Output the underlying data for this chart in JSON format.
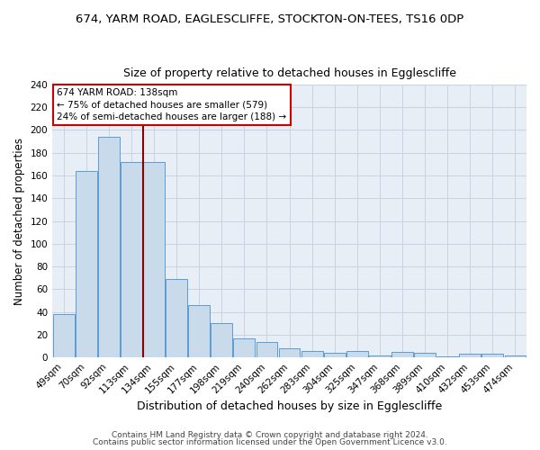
{
  "title": "674, YARM ROAD, EAGLESCLIFFE, STOCKTON-ON-TEES, TS16 0DP",
  "subtitle": "Size of property relative to detached houses in Egglescliffe",
  "xlabel": "Distribution of detached houses by size in Egglescliffe",
  "ylabel": "Number of detached properties",
  "categories": [
    "49sqm",
    "70sqm",
    "92sqm",
    "113sqm",
    "134sqm",
    "155sqm",
    "177sqm",
    "198sqm",
    "219sqm",
    "240sqm",
    "262sqm",
    "283sqm",
    "304sqm",
    "325sqm",
    "347sqm",
    "368sqm",
    "389sqm",
    "410sqm",
    "432sqm",
    "453sqm",
    "474sqm"
  ],
  "values": [
    38,
    164,
    194,
    172,
    172,
    69,
    46,
    30,
    17,
    14,
    8,
    6,
    4,
    6,
    2,
    5,
    4,
    1,
    3,
    3,
    2
  ],
  "bar_color": "#c9daea",
  "bar_edge_color": "#5b9bd5",
  "background_color": "#ffffff",
  "axes_bg_color": "#e8eef5",
  "grid_color": "#c8d4e4",
  "annotation_text": "674 YARM ROAD: 138sqm\n← 75% of detached houses are smaller (579)\n24% of semi-detached houses are larger (188) →",
  "vline_x": 3.5,
  "vline_color": "#8b0000",
  "annotation_box_edge": "#cc0000",
  "ylim": [
    0,
    240
  ],
  "yticks": [
    0,
    20,
    40,
    60,
    80,
    100,
    120,
    140,
    160,
    180,
    200,
    220,
    240
  ],
  "footer1": "Contains HM Land Registry data © Crown copyright and database right 2024.",
  "footer2": "Contains public sector information licensed under the Open Government Licence v3.0.",
  "title_fontsize": 9.5,
  "subtitle_fontsize": 9,
  "xlabel_fontsize": 9,
  "ylabel_fontsize": 8.5,
  "tick_fontsize": 7.5,
  "annotation_fontsize": 7.5,
  "footer_fontsize": 6.5
}
